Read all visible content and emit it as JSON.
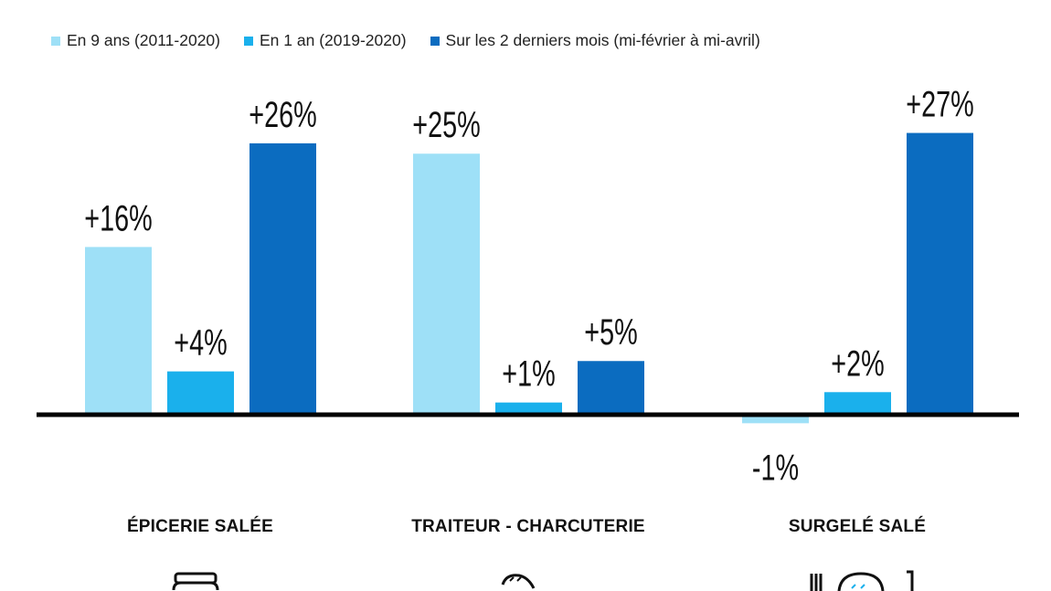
{
  "chart_data": {
    "type": "bar",
    "categories": [
      "ÉPICERIE SALÉE",
      "TRAITEUR - CHARCUTERIE",
      "SURGELÉ SALÉ"
    ],
    "series": [
      {
        "name": "En 9 ans (2011-2020)",
        "values": [
          16,
          25,
          -1
        ],
        "labels": [
          "+16%",
          "+25%",
          "-1%"
        ],
        "color": "#9ee0f7"
      },
      {
        "name": "En 1 an (2019-2020)",
        "values": [
          4,
          1,
          2
        ],
        "labels": [
          "+4%",
          "+1%",
          "+2%"
        ],
        "color": "#1ab0ec"
      },
      {
        "name": "Sur les 2 derniers mois (mi-février à mi-avril)",
        "values": [
          26,
          5,
          27
        ],
        "labels": [
          "+26%",
          "+5%",
          "+27%"
        ],
        "color": "#0b6cc0"
      }
    ],
    "title": "",
    "xlabel": "",
    "ylabel": "",
    "ylim": [
      -1,
      27
    ],
    "grid": false,
    "legend": "top"
  },
  "icons": [
    "jar-icon",
    "baguette-icon",
    "plate-icon"
  ]
}
